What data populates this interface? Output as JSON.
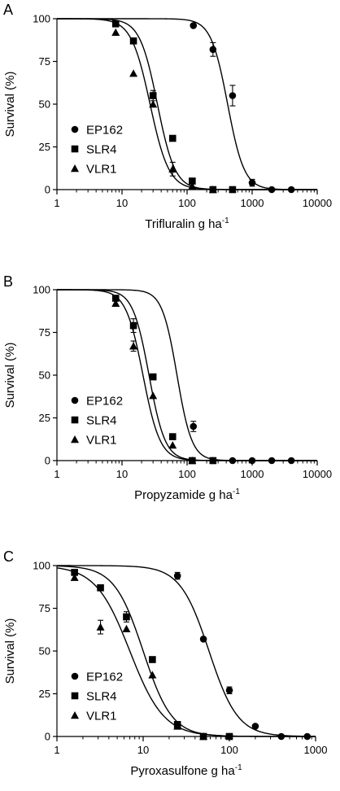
{
  "chart_data": [
    {
      "panel": "A",
      "type": "scatter",
      "xlabel": "Trifluralin g ha",
      "xlabel_sup": "-1",
      "ylabel": "Survival (%)",
      "xscale": "log",
      "xlim": [
        1,
        10000
      ],
      "ylim": [
        0,
        100
      ],
      "xticks": [
        "1",
        "10",
        "100",
        "1000",
        "10000"
      ],
      "yticks": [
        "0",
        "25",
        "50",
        "75",
        "100"
      ],
      "legend_position": "left-bottom",
      "series": [
        {
          "name": "EP162",
          "marker": "circle",
          "x": [
            125,
            250,
            500,
            1000,
            2000,
            4000
          ],
          "y": [
            96,
            82,
            55,
            4,
            0,
            0
          ],
          "err": [
            0,
            4,
            6,
            2,
            0,
            0
          ],
          "fit": {
            "ld50": 420,
            "slope": 3.4
          }
        },
        {
          "name": "SLR4",
          "marker": "square",
          "x": [
            8,
            15,
            30,
            60,
            120,
            250,
            500
          ],
          "y": [
            97,
            87,
            55,
            30,
            5,
            0,
            0
          ],
          "err": [
            0,
            0,
            3,
            0,
            0,
            0,
            0
          ],
          "fit": {
            "ld50": 35,
            "slope": 3.2
          }
        },
        {
          "name": "VLR1",
          "marker": "triangle",
          "x": [
            8,
            15,
            30,
            60,
            120,
            250
          ],
          "y": [
            92,
            68,
            50,
            12,
            2,
            0
          ],
          "err": [
            0,
            0,
            0,
            4,
            0,
            0
          ],
          "fit": {
            "ld50": 27,
            "slope": 3.0
          }
        }
      ]
    },
    {
      "panel": "B",
      "type": "scatter",
      "xlabel": "Propyzamide g ha",
      "xlabel_sup": "-1",
      "ylabel": "Survival (%)",
      "xscale": "log",
      "xlim": [
        1,
        10000
      ],
      "ylim": [
        0,
        100
      ],
      "xticks": [
        "1",
        "10",
        "100",
        "1000",
        "10000"
      ],
      "yticks": [
        "0",
        "25",
        "50",
        "75",
        "100"
      ],
      "legend_position": "left-bottom",
      "series": [
        {
          "name": "EP162",
          "marker": "circle",
          "x": [
            125,
            250,
            500,
            1000,
            2000,
            4000
          ],
          "y": [
            20,
            0,
            0,
            0,
            0,
            0
          ],
          "err": [
            3,
            0,
            0,
            0,
            0,
            0
          ],
          "fit": {
            "ld50": 70,
            "slope": 3.8
          }
        },
        {
          "name": "SLR4",
          "marker": "square",
          "x": [
            8,
            15,
            30,
            60,
            120,
            250
          ],
          "y": [
            95,
            79,
            49,
            14,
            0,
            0
          ],
          "err": [
            0,
            4,
            0,
            0,
            0,
            0
          ],
          "fit": {
            "ld50": 26,
            "slope": 3.5
          }
        },
        {
          "name": "VLR1",
          "marker": "triangle",
          "x": [
            8,
            15,
            30,
            60,
            120
          ],
          "y": [
            92,
            67,
            38,
            9,
            0
          ],
          "err": [
            0,
            3,
            0,
            0,
            0
          ],
          "fit": {
            "ld50": 21,
            "slope": 3.3
          }
        }
      ]
    },
    {
      "panel": "C",
      "type": "scatter",
      "xlabel": "Pyroxasulfone g ha",
      "xlabel_sup": "-1",
      "ylabel": "Survival (%)",
      "xscale": "log",
      "xlim": [
        1,
        1000
      ],
      "ylim": [
        0,
        100
      ],
      "xticks": [
        "1",
        "10",
        "100",
        "1000"
      ],
      "yticks": [
        "0",
        "25",
        "50",
        "75",
        "100"
      ],
      "legend_position": "left-bottom",
      "series": [
        {
          "name": "EP162",
          "marker": "circle",
          "x": [
            25,
            50,
            100,
            200,
            400,
            800
          ],
          "y": [
            94,
            57,
            27,
            6,
            0,
            0
          ],
          "err": [
            2,
            0,
            2,
            0,
            0,
            0
          ],
          "fit": {
            "ld50": 58,
            "slope": 2.6
          }
        },
        {
          "name": "SLR4",
          "marker": "square",
          "x": [
            1.6,
            3.2,
            6.4,
            12.8,
            25,
            50,
            100
          ],
          "y": [
            96,
            87,
            70,
            45,
            7,
            0,
            0
          ],
          "err": [
            0,
            0,
            3,
            0,
            0,
            0,
            0
          ],
          "fit": {
            "ld50": 10,
            "slope": 2.6
          }
        },
        {
          "name": "VLR1",
          "marker": "triangle",
          "x": [
            1.6,
            3.2,
            6.4,
            12.8,
            25,
            50
          ],
          "y": [
            93,
            64,
            63,
            36,
            6,
            0
          ],
          "err": [
            0,
            4,
            0,
            0,
            0,
            0
          ],
          "fit": {
            "ld50": 7,
            "slope": 2.2
          }
        }
      ]
    }
  ]
}
